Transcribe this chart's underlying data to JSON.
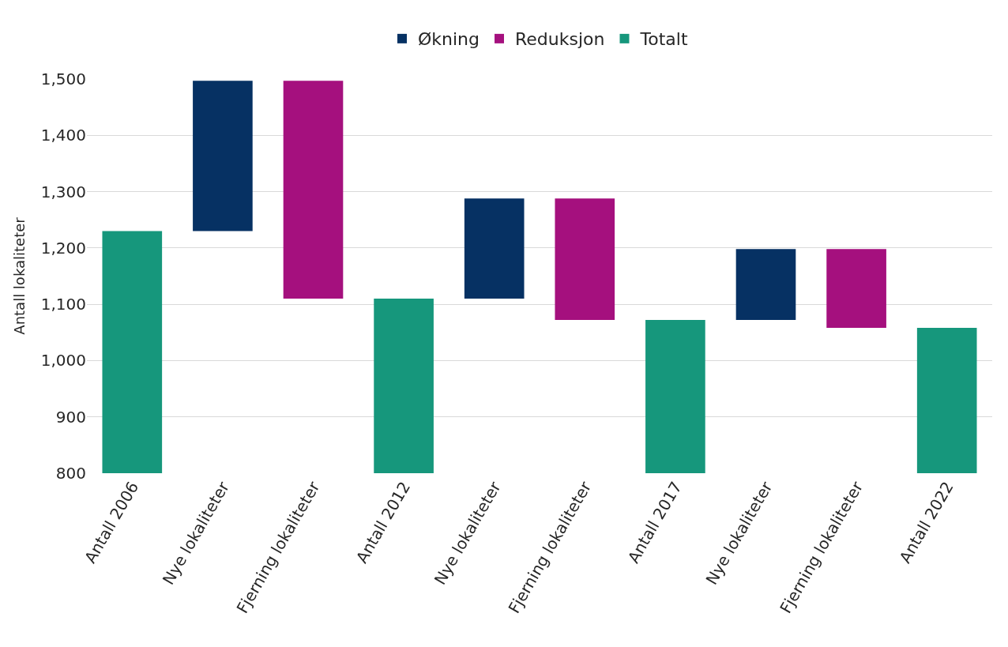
{
  "chart_data": {
    "type": "bar",
    "ylabel": "Antall lokaliteter",
    "categories": [
      "Antall 2006",
      "Nye lokaliteter",
      "Fjerning lokaliteter",
      "Antall 2012",
      "Nye lokaliteter",
      "Fjerning lokaliteter",
      "Antall 2017",
      "Nye lokaliteter",
      "Fjerning lokaliteter",
      "Antall 2022"
    ],
    "series": [
      {
        "name": "Økning",
        "color": "#063163",
        "values": [
          null,
          267,
          null,
          null,
          178,
          null,
          null,
          126,
          null,
          null
        ],
        "base": [
          null,
          1230,
          null,
          null,
          1110,
          null,
          null,
          1072,
          null,
          null
        ]
      },
      {
        "name": "Reduksjon",
        "color": "#a5107e",
        "values": [
          null,
          null,
          -387,
          null,
          null,
          -216,
          null,
          null,
          -140,
          null
        ],
        "base": [
          null,
          null,
          1497,
          null,
          null,
          1288,
          null,
          null,
          1198,
          null
        ]
      },
      {
        "name": "Totalt",
        "color": "#16977c",
        "values": [
          1230,
          null,
          null,
          1110,
          null,
          null,
          1072,
          null,
          null,
          1058
        ]
      }
    ],
    "ylim": [
      800,
      1500
    ],
    "yticks": [
      {
        "value": 800,
        "label": "800"
      },
      {
        "value": 900,
        "label": "900"
      },
      {
        "value": 1000,
        "label": "1,000"
      },
      {
        "value": 1100,
        "label": "1,100"
      },
      {
        "value": 1200,
        "label": "1,200"
      },
      {
        "value": 1300,
        "label": "1,300"
      },
      {
        "value": 1400,
        "label": "1,400"
      },
      {
        "value": 1500,
        "label": "1,500"
      }
    ],
    "grid": "y",
    "legend": "top"
  }
}
